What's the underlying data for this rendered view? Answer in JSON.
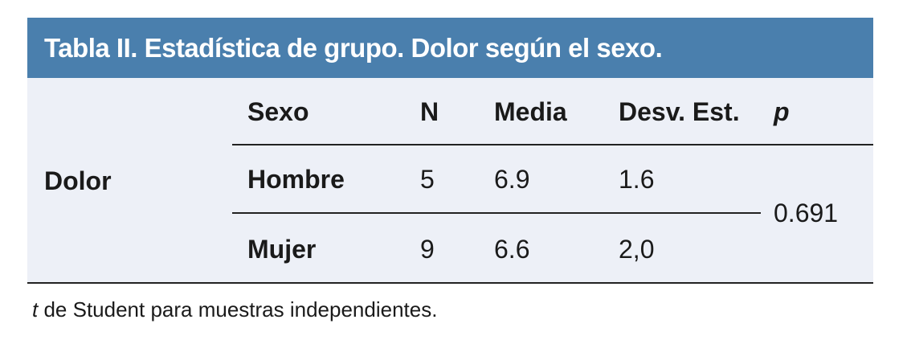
{
  "title": "Tabla II. Estadística de grupo. Dolor según el sexo.",
  "table": {
    "group_label": "Dolor",
    "headers": [
      "Sexo",
      "N",
      "Media",
      "Desv. Est.",
      "p"
    ],
    "rows": [
      [
        "Hombre",
        "5",
        "6.9",
        "1.6"
      ],
      [
        "Mujer",
        "9",
        "6.6",
        "2,0"
      ]
    ],
    "p_value": "0.691"
  },
  "footnote": {
    "t": "t",
    "rest": " de Student para muestras independientes."
  },
  "colors": {
    "header_bg": "#4a7fad",
    "body_bg": "#edf0f7",
    "line": "#222222",
    "text": "#1a1a1a",
    "title_text": "#ffffff"
  },
  "chart_data": {
    "type": "table",
    "title": "Tabla II. Estadística de grupo. Dolor según el sexo.",
    "row_group": "Dolor",
    "columns": [
      "Sexo",
      "N",
      "Media",
      "Desv. Est.",
      "p"
    ],
    "rows": [
      [
        "Hombre",
        5,
        6.9,
        "1.6"
      ],
      [
        "Mujer",
        9,
        6.6,
        "2,0"
      ]
    ],
    "shared_p_value": 0.691,
    "footnote": "t de Student para muestras independientes."
  }
}
